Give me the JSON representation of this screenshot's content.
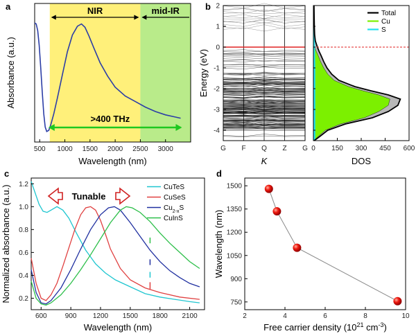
{
  "panels": [
    "a",
    "b",
    "c",
    "d"
  ],
  "chart_data": [
    {
      "id": "a",
      "type": "line",
      "xlabel": "Wavelength (nm)",
      "ylabel": "Absorbance (a.u.)",
      "xlim": [
        400,
        3500
      ],
      "xticks": [
        500,
        1000,
        1500,
        2000,
        2500,
        3000
      ],
      "regions": [
        {
          "label": "NIR",
          "from": 700,
          "to": 2500,
          "color": "#fff07a"
        },
        {
          "label": "mid-IR",
          "from": 2500,
          "to": 3500,
          "color": "#b9eb8a"
        }
      ],
      "annotation": ">400 THz",
      "series": [
        {
          "name": "absorbance",
          "color": "#2c3ea6",
          "x": [
            400,
            430,
            460,
            490,
            520,
            550,
            580,
            610,
            640,
            680,
            720,
            780,
            850,
            950,
            1050,
            1150,
            1250,
            1330,
            1400,
            1480,
            1580,
            1700,
            1850,
            2000,
            2200,
            2400,
            2600,
            2800,
            3000,
            3200,
            3300
          ],
          "y": [
            1.0,
            0.99,
            0.93,
            0.8,
            0.6,
            0.38,
            0.18,
            0.06,
            0.02,
            0.03,
            0.08,
            0.18,
            0.32,
            0.53,
            0.74,
            0.89,
            0.97,
            0.99,
            0.96,
            0.88,
            0.77,
            0.64,
            0.52,
            0.42,
            0.34,
            0.29,
            0.24,
            0.2,
            0.17,
            0.15,
            0.14
          ]
        }
      ]
    },
    {
      "id": "b",
      "type": "band+dos",
      "ylabel": "Energy (eV)",
      "ylim": [
        -4.5,
        2
      ],
      "yticks": [
        2,
        1,
        0,
        -1,
        -2,
        -3,
        -4
      ],
      "kpoints": [
        "G",
        "F",
        "Q",
        "Z",
        "G"
      ],
      "kxlabel": "K",
      "dos_xlabel": "DOS",
      "dos_xlim": [
        0,
        600
      ],
      "dos_xticks": [
        0,
        150,
        300,
        450,
        600
      ],
      "legend": [
        {
          "name": "Total",
          "color": "#000000"
        },
        {
          "name": "Cu",
          "color": "#7cf000"
        },
        {
          "name": "S",
          "color": "#20e0f0"
        }
      ],
      "series": [
        {
          "name": "Total",
          "color": "#000000",
          "E": [
            -4.5,
            -4.3,
            -4.0,
            -3.7,
            -3.4,
            -3.1,
            -2.8,
            -2.5,
            -2.3,
            -2.1,
            -1.9,
            -1.6,
            -1.3,
            -1.0,
            -0.7,
            -0.4,
            -0.2,
            0.0,
            0.3,
            0.6,
            1.0,
            1.5,
            2.0
          ],
          "dos": [
            5,
            40,
            90,
            200,
            370,
            470,
            530,
            545,
            470,
            360,
            260,
            160,
            115,
            85,
            65,
            48,
            35,
            25,
            12,
            8,
            6,
            5,
            4
          ]
        },
        {
          "name": "Cu",
          "color": "#7cf000",
          "E": [
            -4.5,
            -4.3,
            -4.0,
            -3.7,
            -3.4,
            -3.1,
            -2.8,
            -2.5,
            -2.3,
            -2.1,
            -1.9,
            -1.6,
            -1.3,
            -1.0,
            -0.7,
            -0.4,
            -0.2,
            0.0
          ],
          "dos": [
            3,
            30,
            75,
            170,
            320,
            410,
            470,
            480,
            410,
            310,
            220,
            130,
            90,
            65,
            45,
            30,
            18,
            8
          ]
        },
        {
          "name": "S",
          "color": "#20e0f0",
          "E": [
            -4.5,
            -4.0,
            -3.0,
            -2.0,
            -1.0,
            0.0,
            1.0,
            2.0
          ],
          "dos": [
            12,
            12,
            12,
            12,
            12,
            10,
            8,
            6
          ]
        }
      ]
    },
    {
      "id": "c",
      "type": "line",
      "xlabel": "Wavelength (nm)",
      "ylabel": "Normalized absorbance (a.u.)",
      "xlim": [
        500,
        2250
      ],
      "ylim": [
        0.1,
        1.25
      ],
      "xticks": [
        600,
        900,
        1200,
        1500,
        1800,
        2100
      ],
      "yticks": [
        0.2,
        0.4,
        0.6,
        0.8,
        1.0,
        1.2
      ],
      "annotation": "Tunable",
      "series": [
        {
          "name": "CuTeS",
          "color": "#1fc6d0",
          "x": [
            500,
            540,
            580,
            620,
            660,
            700,
            760,
            820,
            880,
            950,
            1050,
            1150,
            1250,
            1350,
            1500,
            1650,
            1800,
            1950,
            2100,
            2200
          ],
          "y": [
            1.22,
            1.12,
            1.02,
            0.96,
            0.95,
            0.97,
            1.0,
            0.97,
            0.9,
            0.78,
            0.62,
            0.5,
            0.42,
            0.36,
            0.3,
            0.24,
            0.21,
            0.19,
            0.17,
            0.16
          ]
        },
        {
          "name": "CuSeS",
          "color": "#e04040",
          "x": [
            500,
            550,
            600,
            650,
            700,
            760,
            820,
            880,
            940,
            1000,
            1050,
            1100,
            1150,
            1200,
            1250,
            1300,
            1400,
            1500,
            1650,
            1800,
            2000,
            2200
          ],
          "y": [
            0.55,
            0.33,
            0.2,
            0.18,
            0.23,
            0.33,
            0.48,
            0.64,
            0.8,
            0.93,
            0.99,
            1.0,
            0.97,
            0.88,
            0.76,
            0.63,
            0.46,
            0.36,
            0.29,
            0.25,
            0.21,
            0.19
          ]
        },
        {
          "name": "Cu2-xS",
          "color": "#2030a0",
          "x": [
            500,
            550,
            600,
            650,
            700,
            800,
            900,
            1000,
            1100,
            1200,
            1280,
            1340,
            1400,
            1500,
            1600,
            1700,
            1800,
            1900,
            2000,
            2100,
            2200
          ],
          "y": [
            0.45,
            0.25,
            0.16,
            0.15,
            0.18,
            0.29,
            0.45,
            0.63,
            0.8,
            0.93,
            0.99,
            1.0,
            0.97,
            0.86,
            0.74,
            0.62,
            0.52,
            0.44,
            0.38,
            0.33,
            0.3
          ]
        },
        {
          "name": "CuInS",
          "color": "#2dbf4a",
          "x": [
            500,
            550,
            600,
            650,
            700,
            800,
            900,
            1000,
            1100,
            1200,
            1300,
            1400,
            1460,
            1520,
            1600,
            1700,
            1800,
            1900,
            2000,
            2100,
            2200
          ],
          "y": [
            0.35,
            0.2,
            0.15,
            0.14,
            0.16,
            0.23,
            0.33,
            0.45,
            0.58,
            0.72,
            0.86,
            0.97,
            1.0,
            0.99,
            0.95,
            0.87,
            0.77,
            0.68,
            0.6,
            0.52,
            0.46
          ]
        }
      ]
    },
    {
      "id": "d",
      "type": "scatter",
      "xlabel": "Free carrier density (10",
      "xlabel_sup": "21",
      "xlabel_unit": " cm",
      "xlabel_sup2": "-3",
      "xlabel_end": ")",
      "ylabel": "Wavelength (nm)",
      "xlim": [
        2,
        10
      ],
      "ylim": [
        700,
        1550
      ],
      "xticks": [
        2,
        4,
        6,
        8,
        10
      ],
      "yticks": [
        750,
        900,
        1050,
        1200,
        1350,
        1500
      ],
      "points": [
        {
          "x": 3.2,
          "y": 1480
        },
        {
          "x": 3.6,
          "y": 1335
        },
        {
          "x": 4.6,
          "y": 1100
        },
        {
          "x": 9.6,
          "y": 755
        }
      ]
    }
  ]
}
